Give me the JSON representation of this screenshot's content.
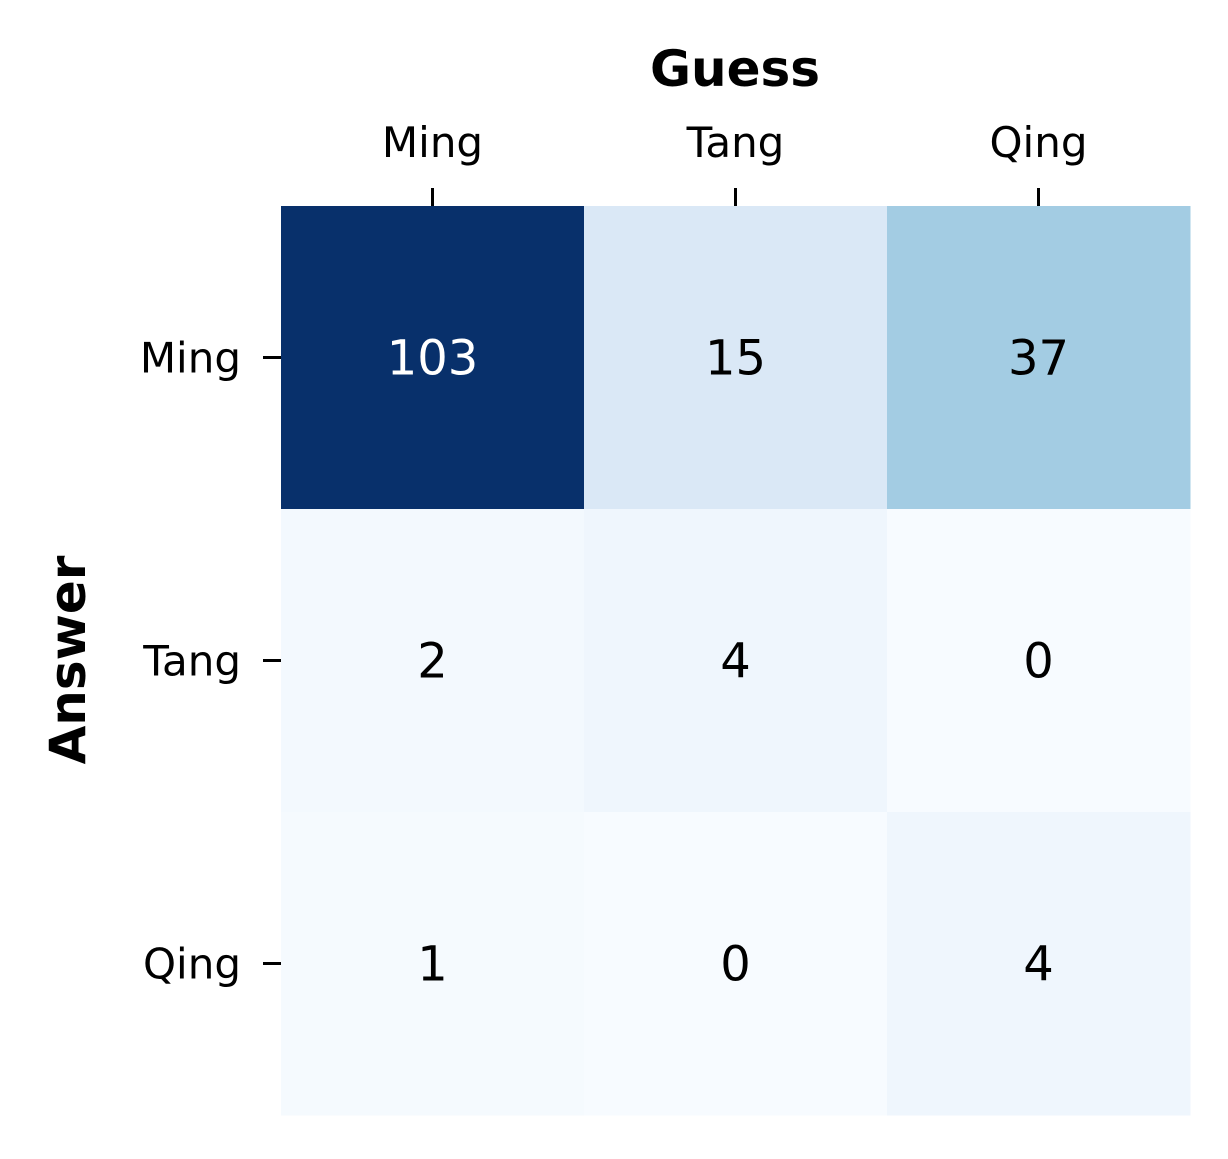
{
  "chart_data": {
    "type": "heatmap",
    "xlabel": "Guess",
    "ylabel": "Answer",
    "x_categories": [
      "Ming",
      "Tang",
      "Qing"
    ],
    "y_categories": [
      "Ming",
      "Tang",
      "Qing"
    ],
    "values": [
      [
        103,
        15,
        37
      ],
      [
        2,
        4,
        0
      ],
      [
        1,
        0,
        4
      ]
    ],
    "colormap": "Blues",
    "colorbar": false,
    "x_axis_position": "top",
    "grid": false
  }
}
